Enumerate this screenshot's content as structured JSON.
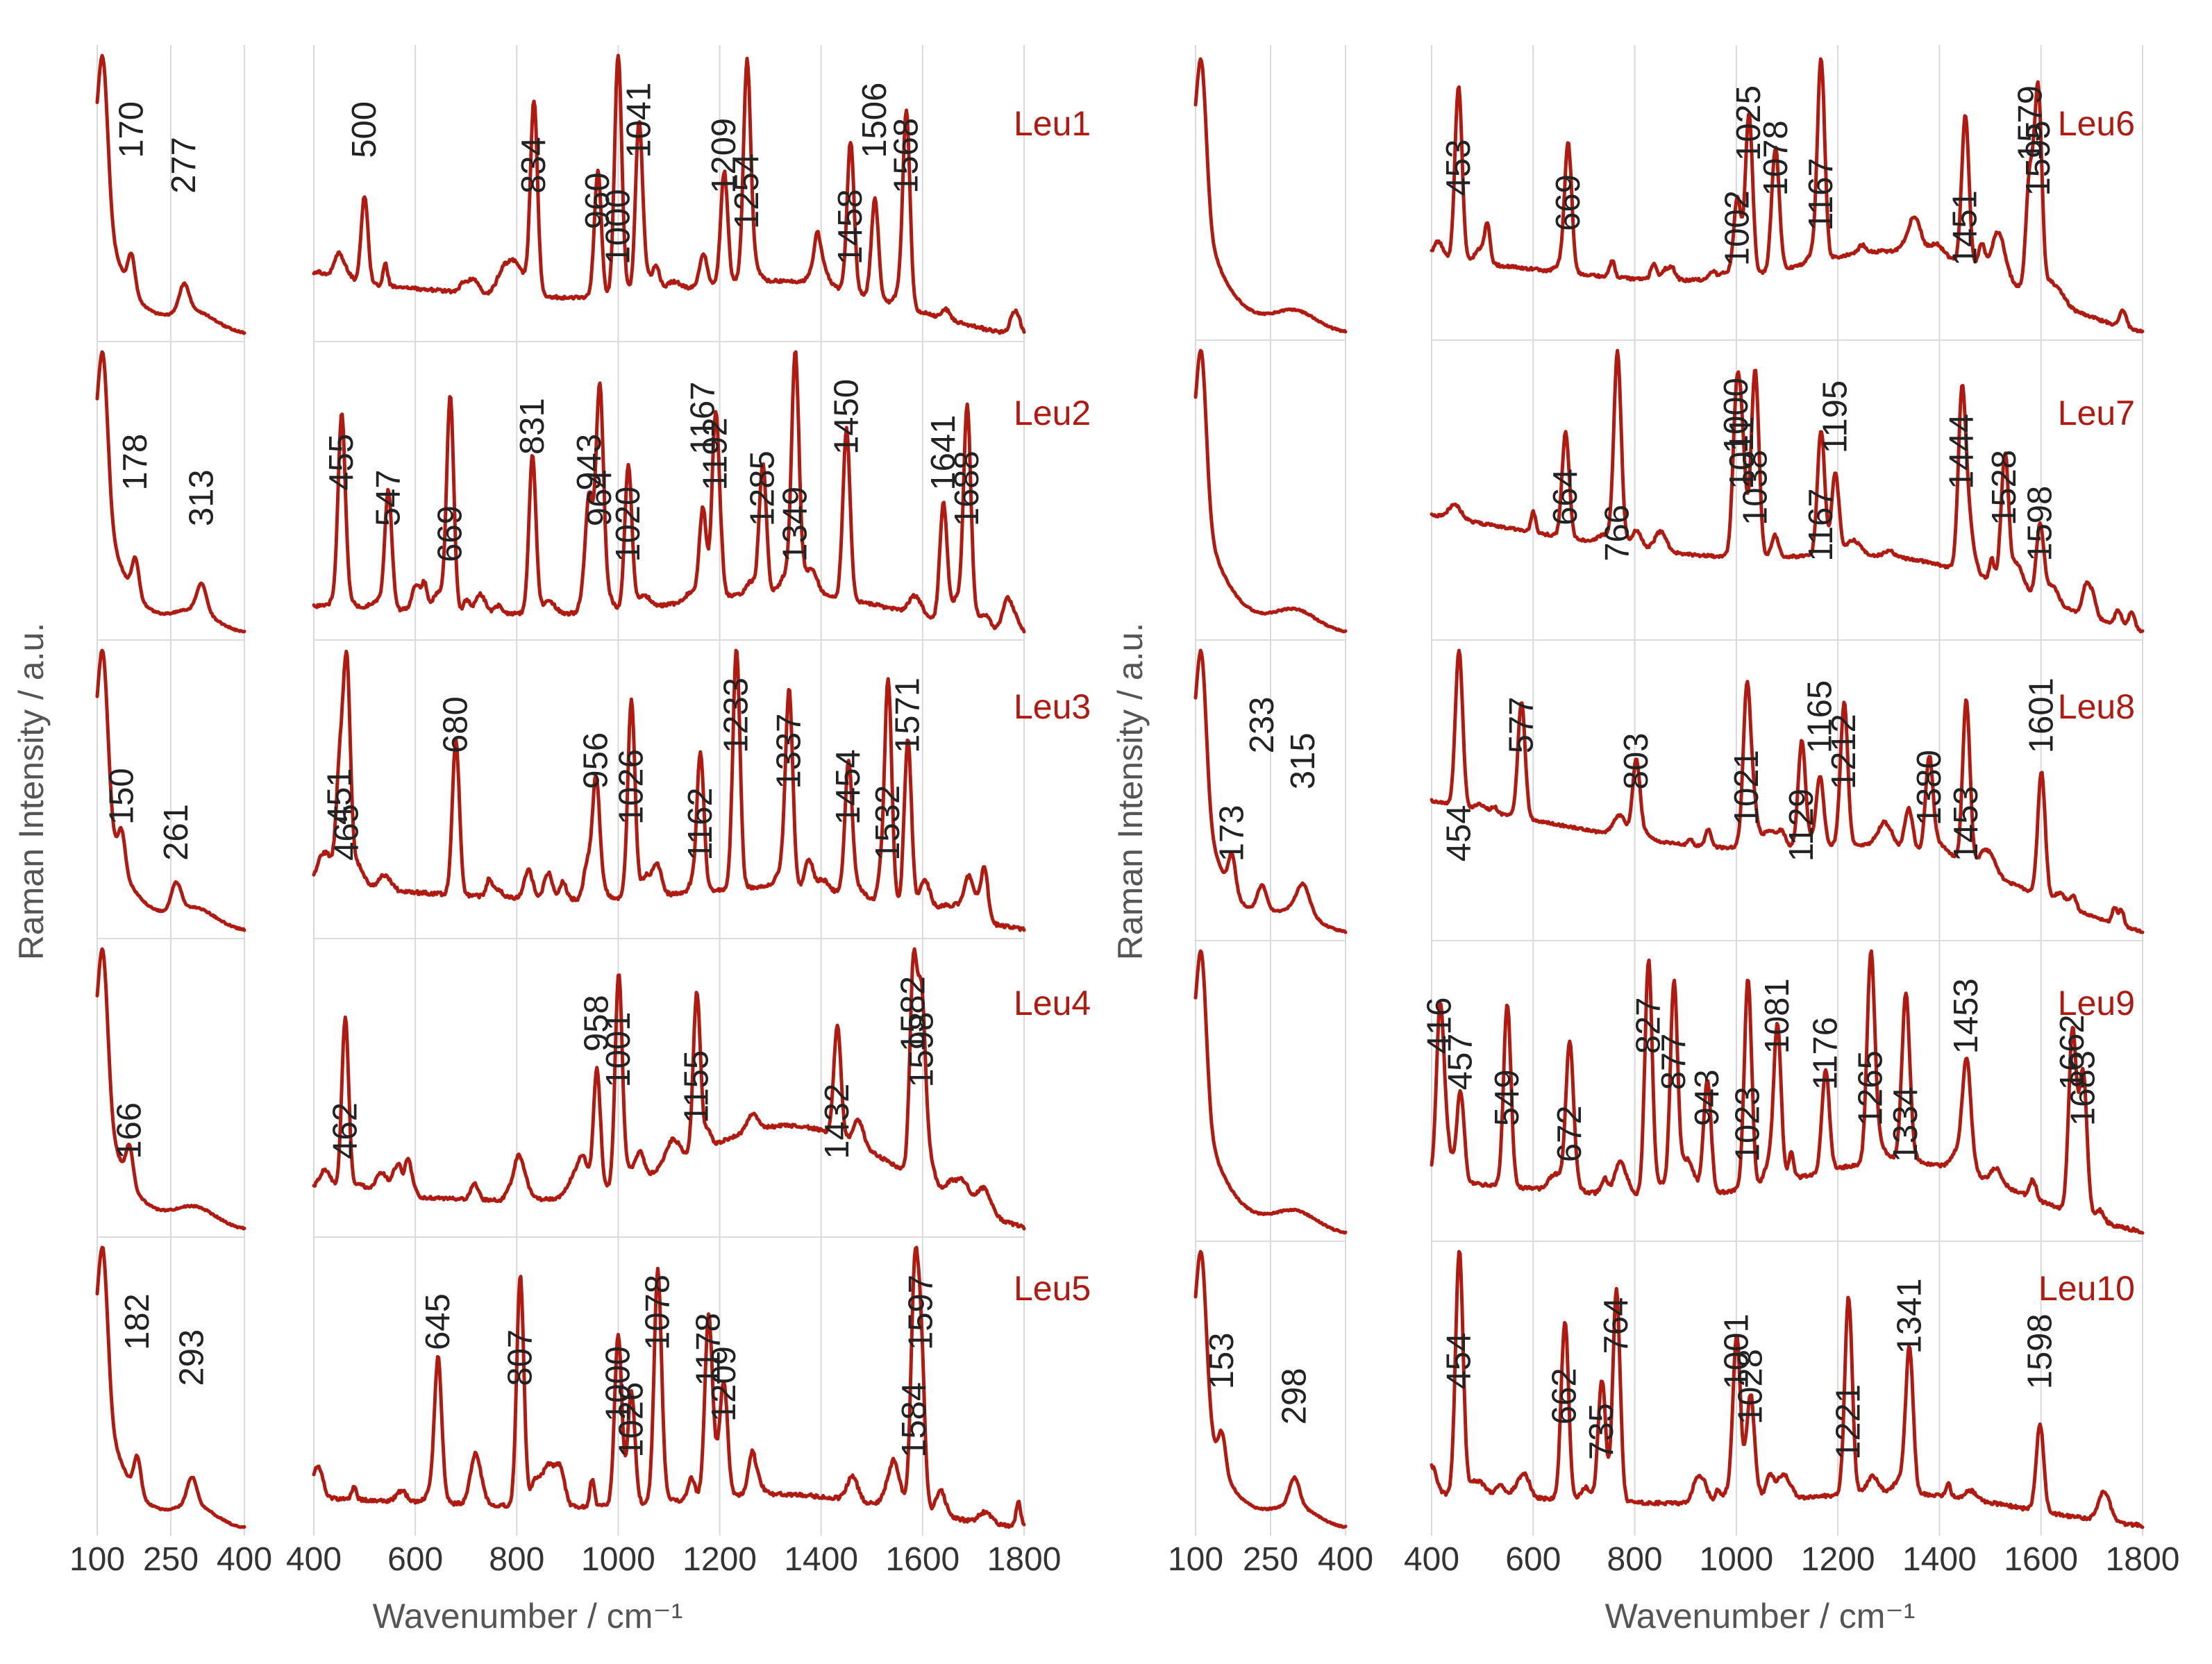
{
  "chart_data": {
    "type": "line",
    "title": "",
    "xlabel": "Wavenumber / cm⁻¹",
    "ylabel": "Raman Intensity / a.u.",
    "line_color": "#b01a10",
    "grid": true,
    "low_range": {
      "xlim": [
        100,
        400
      ],
      "xticks": [
        "100",
        "250",
        "400"
      ]
    },
    "high_range": {
      "xlim": [
        400,
        1800
      ],
      "xticks": [
        "400",
        "600",
        "800",
        "1000",
        "1200",
        "1400",
        "1600",
        "1800"
      ]
    },
    "series": [
      {
        "name": "Leu1",
        "low_peaks": [
          {
            "x": 170,
            "label": "170"
          },
          {
            "x": 277,
            "label": "277"
          }
        ],
        "high_peaks": [
          {
            "x": 500,
            "label": "500"
          },
          {
            "x": 834,
            "label": "834"
          },
          {
            "x": 960,
            "label": "960"
          },
          {
            "x": 1000,
            "label": "1000"
          },
          {
            "x": 1041,
            "label": "1041"
          },
          {
            "x": 1209,
            "label": "1209"
          },
          {
            "x": 1254,
            "label": "1254"
          },
          {
            "x": 1458,
            "label": "1458"
          },
          {
            "x": 1506,
            "label": "1506"
          },
          {
            "x": 1568,
            "label": "1568"
          }
        ]
      },
      {
        "name": "Leu2",
        "low_peaks": [
          {
            "x": 178,
            "label": "178"
          },
          {
            "x": 313,
            "label": "313"
          }
        ],
        "high_peaks": [
          {
            "x": 455,
            "label": "455"
          },
          {
            "x": 547,
            "label": "547"
          },
          {
            "x": 669,
            "label": "669"
          },
          {
            "x": 831,
            "label": "831"
          },
          {
            "x": 943,
            "label": "943"
          },
          {
            "x": 964,
            "label": "964"
          },
          {
            "x": 1020,
            "label": "1020"
          },
          {
            "x": 1167,
            "label": "1167"
          },
          {
            "x": 1192,
            "label": "1192"
          },
          {
            "x": 1285,
            "label": "1285"
          },
          {
            "x": 1349,
            "label": "1349"
          },
          {
            "x": 1450,
            "label": "1450"
          },
          {
            "x": 1641,
            "label": "1641"
          },
          {
            "x": 1688,
            "label": "1688"
          }
        ]
      },
      {
        "name": "Leu3",
        "low_peaks": [
          {
            "x": 150,
            "label": "150"
          },
          {
            "x": 261,
            "label": "261"
          }
        ],
        "high_peaks": [
          {
            "x": 451,
            "label": "451"
          },
          {
            "x": 465,
            "label": "465"
          },
          {
            "x": 680,
            "label": "680"
          },
          {
            "x": 956,
            "label": "956"
          },
          {
            "x": 1026,
            "label": "1026"
          },
          {
            "x": 1162,
            "label": "1162"
          },
          {
            "x": 1233,
            "label": "1233"
          },
          {
            "x": 1337,
            "label": "1337"
          },
          {
            "x": 1454,
            "label": "1454"
          },
          {
            "x": 1532,
            "label": "1532"
          },
          {
            "x": 1571,
            "label": "1571"
          }
        ]
      },
      {
        "name": "Leu4",
        "low_peaks": [
          {
            "x": 166,
            "label": "166"
          }
        ],
        "high_peaks": [
          {
            "x": 462,
            "label": "462"
          },
          {
            "x": 958,
            "label": "958"
          },
          {
            "x": 1001,
            "label": "1001"
          },
          {
            "x": 1155,
            "label": "1155"
          },
          {
            "x": 1432,
            "label": "1432"
          },
          {
            "x": 1582,
            "label": "1582"
          },
          {
            "x": 1598,
            "label": "1598"
          }
        ]
      },
      {
        "name": "Leu5",
        "low_peaks": [
          {
            "x": 182,
            "label": "182"
          },
          {
            "x": 293,
            "label": "293"
          }
        ],
        "high_peaks": [
          {
            "x": 645,
            "label": "645"
          },
          {
            "x": 807,
            "label": "807"
          },
          {
            "x": 1000,
            "label": "1000"
          },
          {
            "x": 1026,
            "label": "1026"
          },
          {
            "x": 1078,
            "label": "1078"
          },
          {
            "x": 1178,
            "label": "1178"
          },
          {
            "x": 1209,
            "label": "1209"
          },
          {
            "x": 1584,
            "label": "1584"
          },
          {
            "x": 1597,
            "label": "1597"
          }
        ]
      },
      {
        "name": "Leu6",
        "low_peaks": [],
        "high_peaks": [
          {
            "x": 453,
            "label": "453"
          },
          {
            "x": 669,
            "label": "669"
          },
          {
            "x": 1002,
            "label": "1002"
          },
          {
            "x": 1025,
            "label": "1025"
          },
          {
            "x": 1078,
            "label": "1078"
          },
          {
            "x": 1167,
            "label": "1167"
          },
          {
            "x": 1451,
            "label": "1451"
          },
          {
            "x": 1579,
            "label": "1579"
          },
          {
            "x": 1595,
            "label": "1595"
          }
        ]
      },
      {
        "name": "Leu7",
        "low_peaks": [],
        "high_peaks": [
          {
            "x": 664,
            "label": "664"
          },
          {
            "x": 766,
            "label": "766"
          },
          {
            "x": 1000,
            "label": "1000"
          },
          {
            "x": 1011,
            "label": "1011"
          },
          {
            "x": 1038,
            "label": "1038"
          },
          {
            "x": 1167,
            "label": "1167"
          },
          {
            "x": 1195,
            "label": "1195"
          },
          {
            "x": 1444,
            "label": "1444"
          },
          {
            "x": 1528,
            "label": "1528"
          },
          {
            "x": 1598,
            "label": "1598"
          }
        ]
      },
      {
        "name": "Leu8",
        "low_peaks": [
          {
            "x": 173,
            "label": "173"
          },
          {
            "x": 233,
            "label": "233"
          },
          {
            "x": 315,
            "label": "315"
          }
        ],
        "high_peaks": [
          {
            "x": 454,
            "label": "454"
          },
          {
            "x": 577,
            "label": "577"
          },
          {
            "x": 803,
            "label": "803"
          },
          {
            "x": 1021,
            "label": "1021"
          },
          {
            "x": 1129,
            "label": "1129"
          },
          {
            "x": 1165,
            "label": "1165"
          },
          {
            "x": 1212,
            "label": "1212"
          },
          {
            "x": 1380,
            "label": "1380"
          },
          {
            "x": 1453,
            "label": "1453"
          },
          {
            "x": 1601,
            "label": "1601"
          }
        ]
      },
      {
        "name": "Leu9",
        "low_peaks": [],
        "high_peaks": [
          {
            "x": 416,
            "label": "416"
          },
          {
            "x": 457,
            "label": "457"
          },
          {
            "x": 549,
            "label": "549"
          },
          {
            "x": 672,
            "label": "672"
          },
          {
            "x": 827,
            "label": "827"
          },
          {
            "x": 877,
            "label": "877"
          },
          {
            "x": 943,
            "label": "943"
          },
          {
            "x": 1023,
            "label": "1023"
          },
          {
            "x": 1081,
            "label": "1081"
          },
          {
            "x": 1176,
            "label": "1176"
          },
          {
            "x": 1265,
            "label": "1265"
          },
          {
            "x": 1334,
            "label": "1334"
          },
          {
            "x": 1453,
            "label": "1453"
          },
          {
            "x": 1662,
            "label": "1662"
          },
          {
            "x": 1683,
            "label": "1683"
          }
        ]
      },
      {
        "name": "Leu10",
        "low_peaks": [
          {
            "x": 153,
            "label": "153"
          },
          {
            "x": 298,
            "label": "298"
          }
        ],
        "high_peaks": [
          {
            "x": 454,
            "label": "454"
          },
          {
            "x": 662,
            "label": "662"
          },
          {
            "x": 735,
            "label": "735"
          },
          {
            "x": 764,
            "label": "764"
          },
          {
            "x": 1001,
            "label": "1001"
          },
          {
            "x": 1028,
            "label": "1028"
          },
          {
            "x": 1221,
            "label": "1221"
          },
          {
            "x": 1341,
            "label": "1341"
          },
          {
            "x": 1598,
            "label": "1598"
          }
        ]
      }
    ]
  }
}
